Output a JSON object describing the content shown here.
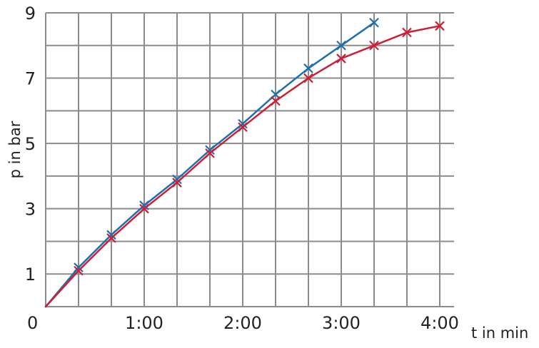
{
  "chart_data": {
    "type": "line",
    "title": "",
    "xlabel": "t in min",
    "ylabel": "p in bar",
    "origin_label": "0",
    "x_unit": "seconds",
    "xlim": [
      0,
      240
    ],
    "ylim": [
      0,
      9
    ],
    "x_ticks": [
      {
        "value": 60,
        "label": "1:00"
      },
      {
        "value": 120,
        "label": "2:00"
      },
      {
        "value": 180,
        "label": "3:00"
      },
      {
        "value": 240,
        "label": "4:00"
      }
    ],
    "y_ticks": [
      {
        "value": 1,
        "label": "1"
      },
      {
        "value": 3,
        "label": "3"
      },
      {
        "value": 5,
        "label": "5"
      },
      {
        "value": 7,
        "label": "7"
      },
      {
        "value": 9,
        "label": "9"
      }
    ],
    "grid": true,
    "legend": "none",
    "series": [
      {
        "color": "#1f6fae",
        "points": [
          [
            0,
            0
          ],
          [
            20,
            1.2
          ],
          [
            40,
            2.2
          ],
          [
            60,
            3.1
          ],
          [
            80,
            3.9
          ],
          [
            100,
            4.8
          ],
          [
            120,
            5.6
          ],
          [
            140,
            6.5
          ],
          [
            160,
            7.3
          ],
          [
            180,
            8.0
          ],
          [
            200,
            8.7
          ]
        ]
      },
      {
        "color": "#cc1f36",
        "points": [
          [
            0,
            0
          ],
          [
            20,
            1.1
          ],
          [
            40,
            2.1
          ],
          [
            60,
            3.0
          ],
          [
            80,
            3.8
          ],
          [
            100,
            4.7
          ],
          [
            120,
            5.5
          ],
          [
            140,
            6.3
          ],
          [
            160,
            7.0
          ],
          [
            180,
            7.6
          ],
          [
            200,
            8.0
          ],
          [
            220,
            8.4
          ],
          [
            240,
            8.6
          ]
        ]
      }
    ]
  }
}
